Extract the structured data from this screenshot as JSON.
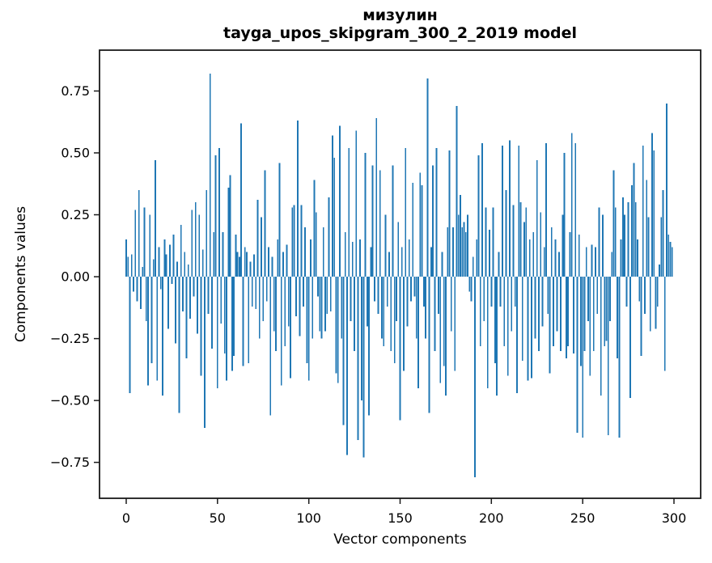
{
  "figure": {
    "title_line1": "мизулин",
    "title_line2": "tayga_upos_skipgram_300_2_2019 model"
  },
  "colors": {
    "bar": "#1f77b4",
    "spine": "#1a1a1a",
    "text": "#000000",
    "background": "#ffffff"
  },
  "chart_data": {
    "type": "bar",
    "title": "мизулин",
    "subtitle": "tayga_upos_skipgram_300_2_2019 model",
    "xlabel": "Vector components",
    "ylabel": "Components values",
    "bar_color": "#1f77b4",
    "grid": false,
    "legend": "none",
    "n_bars": 300,
    "x_start": 0,
    "xlim": [
      -14.6,
      314.6
    ],
    "ylim": [
      -0.895,
      0.915
    ],
    "xticks": [
      0,
      50,
      100,
      150,
      200,
      250,
      300
    ],
    "xtick_labels": [
      "0",
      "50",
      "100",
      "150",
      "200",
      "250",
      "300"
    ],
    "yticks": [
      0.75,
      0.5,
      0.25,
      0.0,
      -0.25,
      -0.5,
      -0.75
    ],
    "ytick_labels": [
      "0.75",
      "0.50",
      "0.25",
      "0.00",
      "−0.25",
      "−0.50",
      "−0.75"
    ],
    "values": [
      0.15,
      0.08,
      -0.47,
      0.09,
      -0.06,
      0.27,
      -0.1,
      0.35,
      -0.13,
      0.04,
      0.28,
      -0.18,
      -0.44,
      0.25,
      -0.35,
      0.07,
      0.47,
      -0.42,
      0.12,
      -0.05,
      -0.48,
      0.15,
      0.09,
      -0.21,
      0.13,
      -0.03,
      0.17,
      -0.27,
      0.06,
      -0.55,
      0.21,
      -0.14,
      0.1,
      -0.33,
      0.05,
      -0.17,
      0.27,
      -0.08,
      0.3,
      -0.23,
      0.25,
      -0.4,
      0.11,
      -0.61,
      0.35,
      -0.15,
      0.82,
      -0.29,
      0.18,
      0.49,
      -0.45,
      0.52,
      -0.19,
      0.18,
      -0.31,
      -0.42,
      0.36,
      0.41,
      -0.38,
      -0.32,
      0.17,
      0.1,
      0.08,
      0.62,
      -0.36,
      0.12,
      0.1,
      -0.35,
      0.06,
      -0.12,
      0.09,
      -0.13,
      0.31,
      -0.25,
      0.24,
      -0.18,
      0.43,
      -0.1,
      0.12,
      -0.56,
      0.08,
      -0.22,
      -0.3,
      0.15,
      0.46,
      -0.44,
      0.1,
      -0.28,
      0.13,
      -0.2,
      -0.41,
      0.28,
      0.29,
      -0.16,
      0.63,
      -0.24,
      0.29,
      -0.12,
      0.2,
      -0.35,
      -0.42,
      0.15,
      -0.25,
      0.39,
      0.26,
      -0.08,
      -0.22,
      -0.25,
      0.2,
      -0.22,
      -0.15,
      0.32,
      -0.14,
      0.57,
      0.48,
      -0.39,
      -0.43,
      0.61,
      -0.25,
      -0.6,
      0.18,
      -0.72,
      0.52,
      -0.18,
      0.14,
      -0.3,
      0.59,
      -0.66,
      0.15,
      -0.5,
      -0.73,
      0.5,
      -0.2,
      -0.56,
      0.12,
      0.45,
      -0.1,
      0.64,
      -0.15,
      0.43,
      -0.25,
      -0.28,
      0.25,
      -0.12,
      0.1,
      -0.3,
      0.45,
      -0.35,
      -0.18,
      0.22,
      -0.58,
      0.12,
      -0.38,
      0.52,
      -0.2,
      0.15,
      -0.1,
      0.38,
      -0.08,
      -0.25,
      -0.45,
      0.42,
      0.37,
      -0.12,
      -0.25,
      0.8,
      -0.55,
      0.12,
      0.45,
      -0.3,
      0.52,
      -0.15,
      -0.43,
      0.1,
      -0.36,
      -0.48,
      0.2,
      0.51,
      -0.22,
      0.2,
      -0.38,
      0.69,
      0.25,
      0.33,
      0.2,
      0.22,
      0.18,
      0.25,
      -0.06,
      -0.1,
      0.08,
      -0.81,
      0.15,
      0.49,
      -0.28,
      0.54,
      -0.18,
      0.28,
      -0.45,
      0.19,
      -0.12,
      0.28,
      -0.35,
      -0.48,
      0.1,
      -0.12,
      0.53,
      -0.28,
      0.35,
      -0.4,
      0.55,
      -0.22,
      0.29,
      -0.12,
      -0.47,
      0.53,
      0.3,
      -0.34,
      0.22,
      0.28,
      -0.42,
      0.15,
      -0.41,
      0.18,
      -0.25,
      0.47,
      -0.3,
      0.26,
      -0.2,
      0.12,
      0.54,
      -0.15,
      -0.39,
      0.2,
      -0.28,
      0.15,
      -0.22,
      0.1,
      -0.3,
      0.25,
      0.5,
      -0.33,
      -0.28,
      0.18,
      0.58,
      -0.31,
      0.54,
      -0.63,
      0.17,
      -0.36,
      -0.65,
      -0.3,
      0.12,
      -0.18,
      -0.4,
      0.13,
      -0.3,
      0.12,
      -0.15,
      0.28,
      -0.48,
      0.25,
      -0.28,
      -0.26,
      -0.64,
      -0.18,
      0.1,
      0.43,
      0.28,
      -0.33,
      -0.65,
      0.15,
      0.32,
      0.25,
      -0.12,
      0.3,
      -0.49,
      0.37,
      0.46,
      0.3,
      0.15,
      -0.1,
      -0.32,
      0.53,
      -0.15,
      0.39,
      0.24,
      -0.22,
      0.58,
      0.51,
      -0.21,
      -0.12,
      0.05,
      0.24,
      0.35,
      -0.38,
      0.7,
      0.17,
      0.14,
      0.12
    ]
  }
}
